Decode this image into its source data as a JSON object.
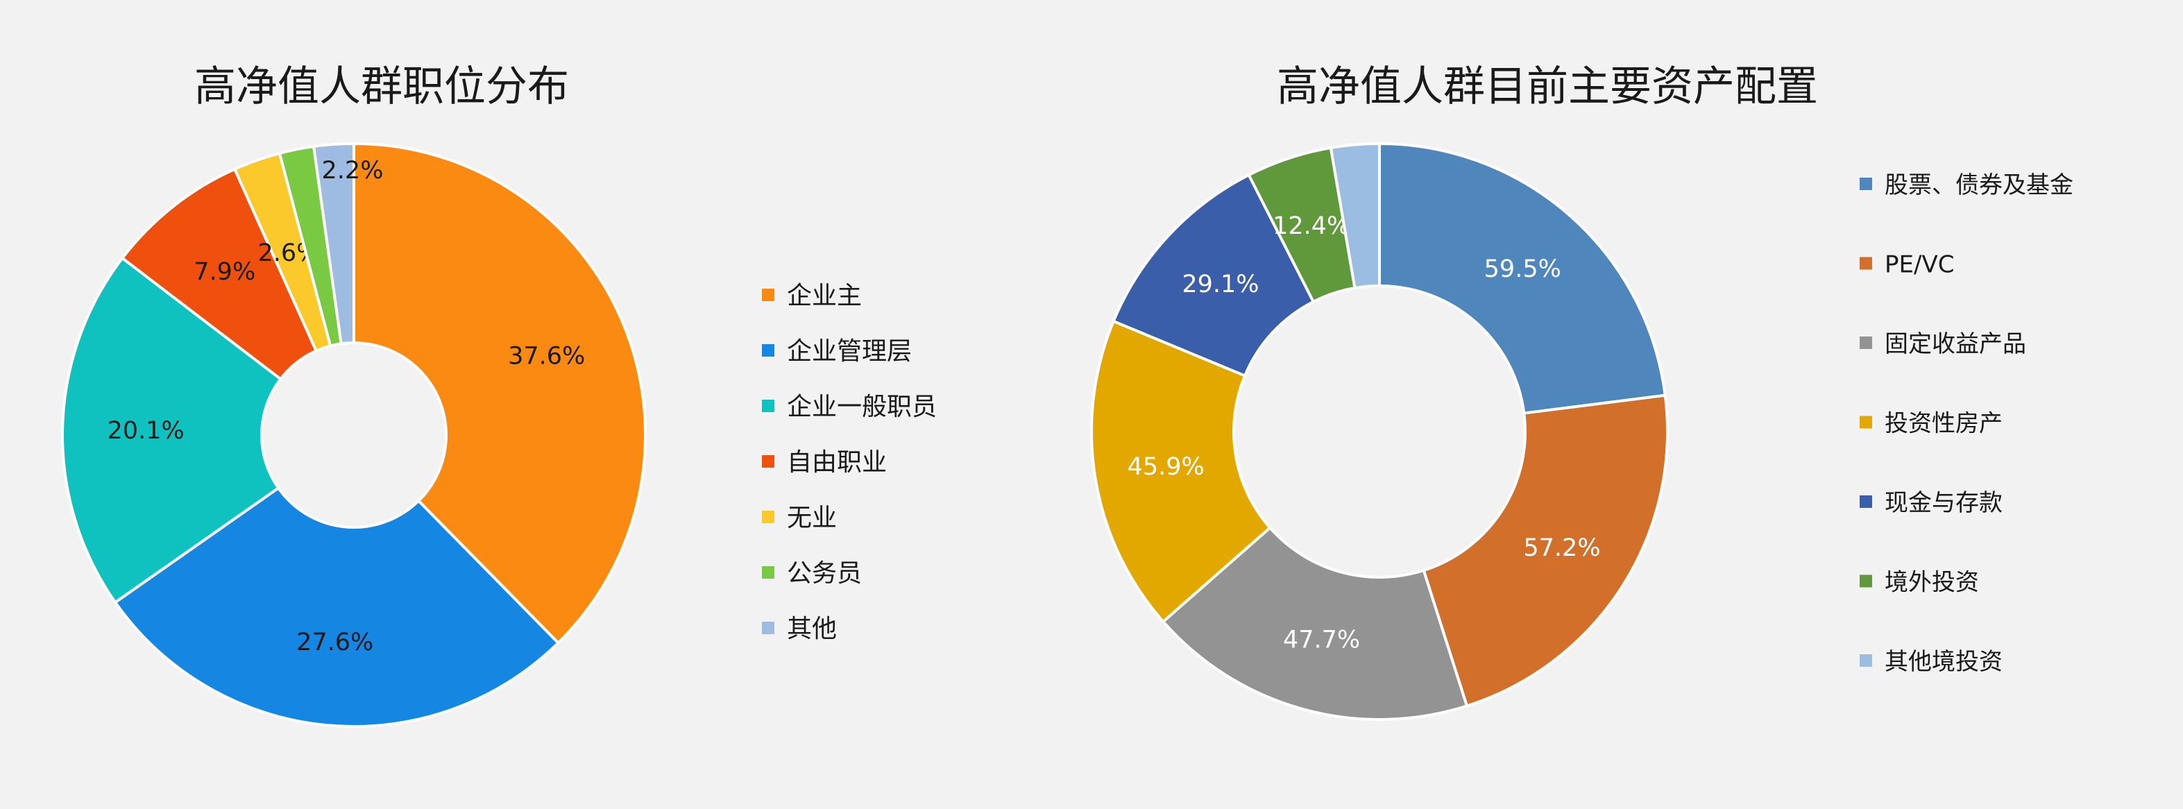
{
  "chart_data": [
    {
      "type": "pie",
      "title": "高净值人群职位分布",
      "categories": [
        "企业主",
        "企业管理层",
        "企业一般职员",
        "自由职业",
        "无业",
        "公务员",
        "其他"
      ],
      "values": [
        37.6,
        27.6,
        20.1,
        7.9,
        2.6,
        1.9,
        2.2
      ],
      "labels": [
        "37.6%",
        "27.6%",
        "20.1%",
        "7.9%",
        "2.6%",
        "",
        "2.2%"
      ],
      "colors": [
        "#fb8a13",
        "#1586e1",
        "#0fc2c0",
        "#f0500e",
        "#fcc92c",
        "#7ac943",
        "#9ebbe1"
      ],
      "legend_position": "right",
      "label_color": "#1a1a1a"
    },
    {
      "type": "pie",
      "title": "高净值人群目前主要资产配置",
      "categories": [
        "股票、债券及基金",
        "PE/VC",
        "固定收益产品",
        "投资性房产",
        "现金与存款",
        "境外投资",
        "其他境投资"
      ],
      "values": [
        59.5,
        57.2,
        47.7,
        45.9,
        29.1,
        12.4,
        7.0
      ],
      "labels": [
        "59.5%",
        "57.2%",
        "47.7%",
        "45.9%",
        "29.1%",
        "12.4%",
        ""
      ],
      "colors": [
        "#4f87bd",
        "#d2702b",
        "#939393",
        "#e3a800",
        "#3a5ea9",
        "#5f993b",
        "#9bbde2"
      ],
      "legend_position": "right",
      "label_color": "#ffffff"
    }
  ]
}
